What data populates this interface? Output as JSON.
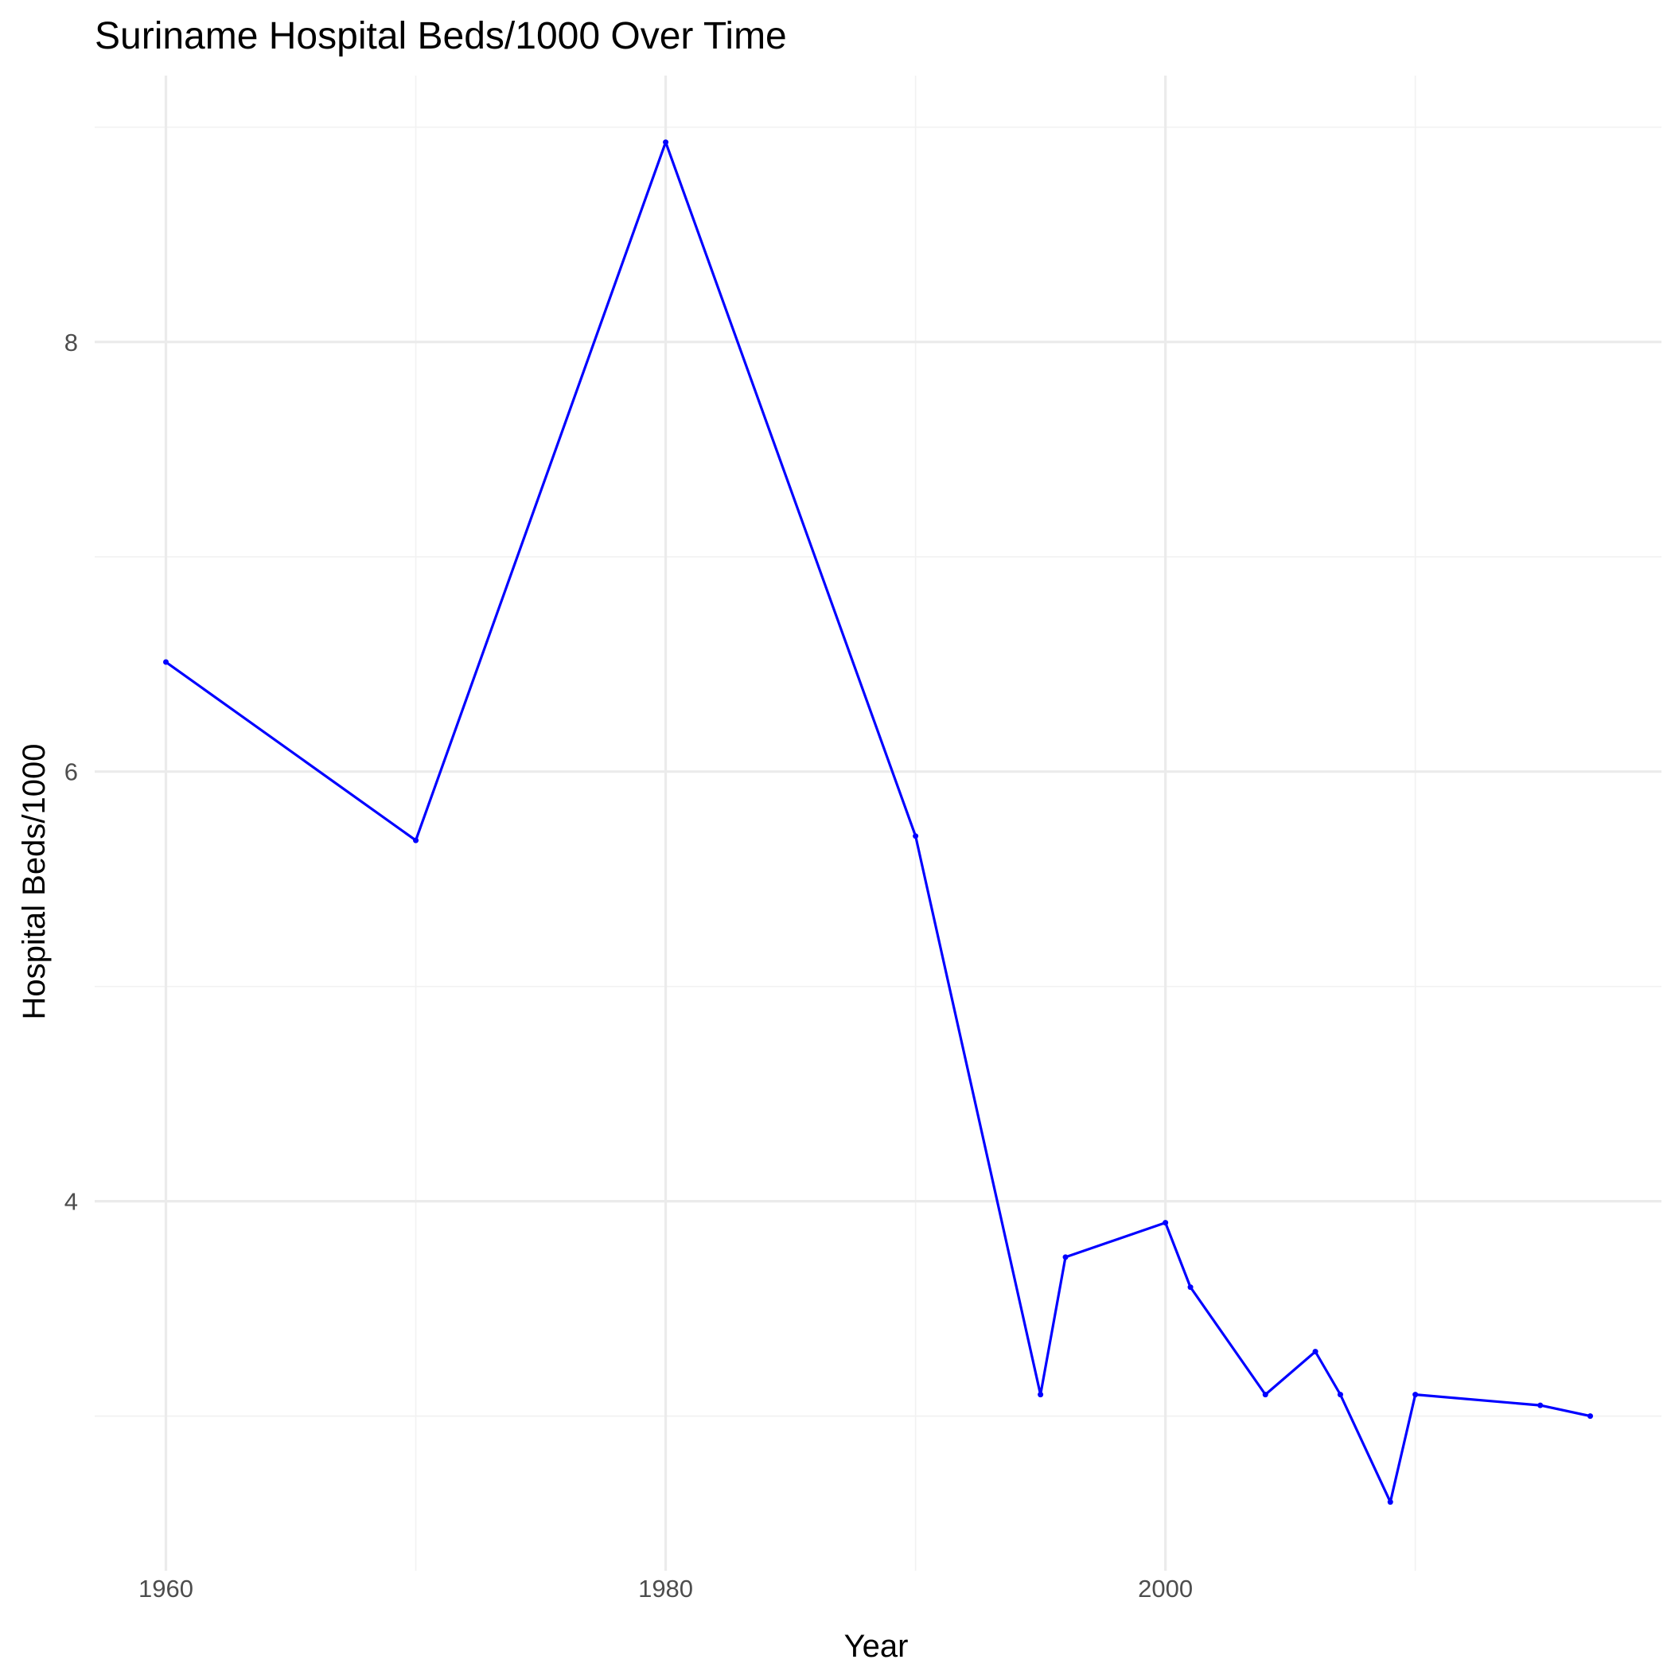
{
  "chart_data": {
    "type": "line",
    "title": "Suriname Hospital Beds/1000 Over Time",
    "xlabel": "Year",
    "ylabel": "Hospital Beds/1000",
    "xlim": [
      1957.15,
      2019.85
    ],
    "ylim": [
      2.28,
      9.24
    ],
    "x_major_ticks": [
      1960,
      1980,
      2000
    ],
    "x_minor_ticks": [
      1970,
      1990,
      2010
    ],
    "y_major_ticks": [
      4,
      6,
      8
    ],
    "y_minor_ticks": [
      3,
      5,
      7,
      9
    ],
    "x_tick_labels": [
      "1960",
      "1980",
      "2000"
    ],
    "y_tick_labels": [
      "4",
      "6",
      "8"
    ],
    "grid": true,
    "line_color": "#0000ff",
    "series": [
      {
        "name": "Hospital Beds/1000",
        "x": [
          1960,
          1970,
          1980,
          1990,
          1995,
          1996,
          2000,
          2001,
          2004,
          2006,
          2007,
          2009,
          2010,
          2015,
          2017
        ],
        "values": [
          6.51,
          5.68,
          8.93,
          5.7,
          3.1,
          3.74,
          3.9,
          3.6,
          3.1,
          3.3,
          3.1,
          2.6,
          3.1,
          3.05,
          3.0
        ]
      }
    ]
  }
}
